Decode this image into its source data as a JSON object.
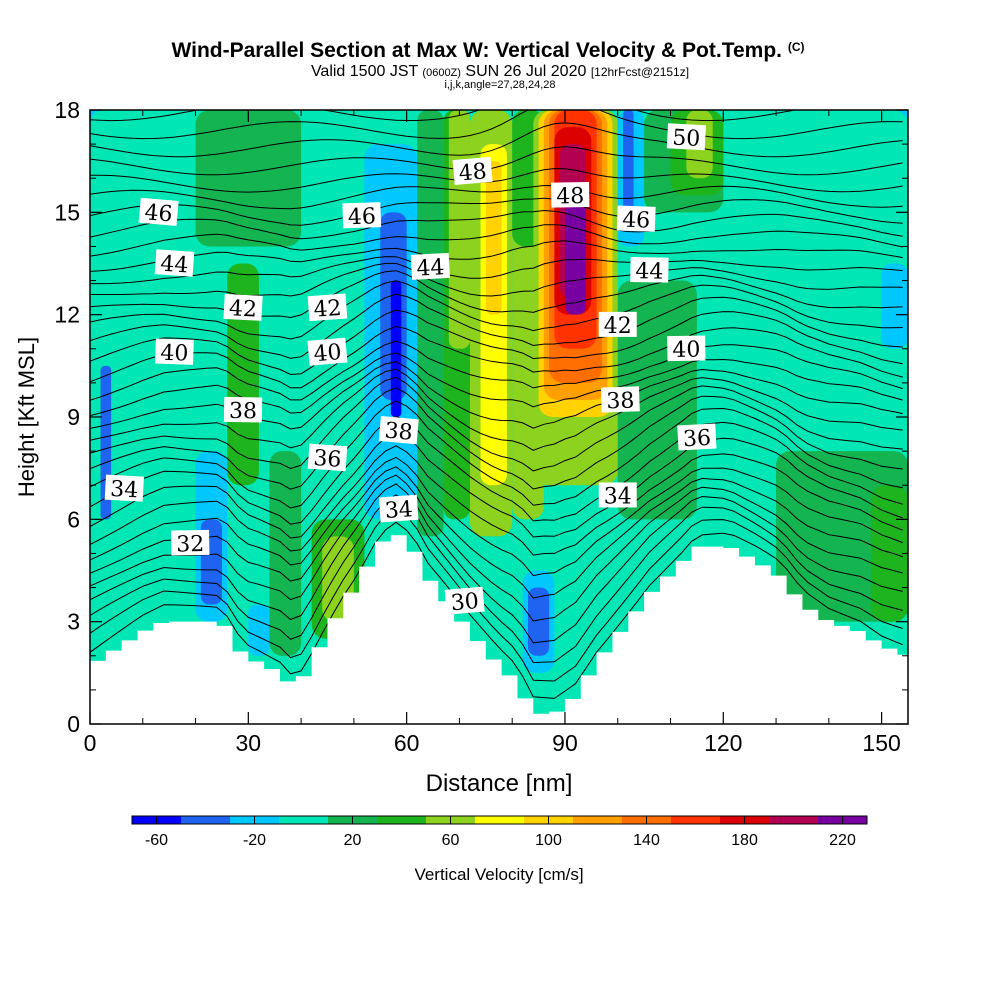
{
  "chart_data": {
    "type": "heatmap",
    "title": "Wind-Parallel Section at Max W: Vertical Velocity & Pot.Temp.",
    "title_mark": "(C)",
    "subtitle_valid": "Valid 1500 JST",
    "subtitle_utc": "(0600Z)",
    "subtitle_date": "SUN 26 Jul 2020",
    "subtitle_fcst": "[12hrFcst@2151z]",
    "subtitle2": "i,j,k,angle=27,28,24,28",
    "xlabel": "Distance [nm]",
    "ylabel": "Height [Kft MSL]",
    "xlim": [
      0,
      155
    ],
    "ylim": [
      0,
      18
    ],
    "xticks": [
      0,
      30,
      60,
      90,
      120,
      150
    ],
    "yticks": [
      0,
      3,
      6,
      9,
      12,
      15,
      18
    ],
    "colorbar": {
      "label": "Vertical Velocity [cm/s]",
      "min": -70,
      "step": 20,
      "tick_values": [
        -60,
        -20,
        20,
        60,
        100,
        140,
        180,
        220
      ],
      "tick_labels": [
        "-60",
        "-20",
        "20",
        "60",
        "100",
        "140",
        "180",
        "220"
      ],
      "colors": [
        "#0000ff",
        "#1e64f0",
        "#00c8ff",
        "#00e6b4",
        "#14b450",
        "#1eb41e",
        "#8cd21e",
        "#ffff00",
        "#ffd200",
        "#ffa000",
        "#ff6e00",
        "#ff3200",
        "#dc0000",
        "#b40050",
        "#7800a0"
      ]
    },
    "terrain": [
      {
        "x": 0,
        "h": 1.7
      },
      {
        "x": 3,
        "h": 2.0
      },
      {
        "x": 6,
        "h": 2.3
      },
      {
        "x": 10,
        "h": 2.7
      },
      {
        "x": 14,
        "h": 3.0
      },
      {
        "x": 25,
        "h": 3.0
      },
      {
        "x": 29,
        "h": 2.0
      },
      {
        "x": 32,
        "h": 1.8
      },
      {
        "x": 36,
        "h": 1.5
      },
      {
        "x": 39,
        "h": 1.0
      },
      {
        "x": 42,
        "h": 1.8
      },
      {
        "x": 45,
        "h": 2.7
      },
      {
        "x": 48,
        "h": 3.5
      },
      {
        "x": 51,
        "h": 4.2
      },
      {
        "x": 55,
        "h": 5.3
      },
      {
        "x": 58,
        "h": 5.6
      },
      {
        "x": 61,
        "h": 5.2
      },
      {
        "x": 64,
        "h": 4.3
      },
      {
        "x": 68,
        "h": 3.5
      },
      {
        "x": 72,
        "h": 2.7
      },
      {
        "x": 77,
        "h": 1.8
      },
      {
        "x": 81,
        "h": 1.2
      },
      {
        "x": 84,
        "h": 0.3
      },
      {
        "x": 88,
        "h": 0.3
      },
      {
        "x": 92,
        "h": 0.8
      },
      {
        "x": 96,
        "h": 1.8
      },
      {
        "x": 101,
        "h": 2.8
      },
      {
        "x": 106,
        "h": 3.8
      },
      {
        "x": 112,
        "h": 4.7
      },
      {
        "x": 115,
        "h": 5.2
      },
      {
        "x": 121,
        "h": 5.2
      },
      {
        "x": 127,
        "h": 4.7
      },
      {
        "x": 131,
        "h": 4.3
      },
      {
        "x": 135,
        "h": 3.5
      },
      {
        "x": 140,
        "h": 3.0
      },
      {
        "x": 146,
        "h": 2.7
      },
      {
        "x": 150,
        "h": 2.3
      },
      {
        "x": 155,
        "h": 2.0
      }
    ],
    "vertical_velocity_cells": [
      {
        "x0": 0,
        "x1": 155,
        "y0": 0,
        "y1": 18,
        "w": 5
      },
      {
        "x0": 0,
        "x1": 20,
        "y0": 11,
        "y1": 18,
        "w": 5
      },
      {
        "x0": 20,
        "x1": 40,
        "y0": 14,
        "y1": 18,
        "w": 25
      },
      {
        "x0": 26,
        "x1": 32,
        "y0": 7,
        "y1": 13.5,
        "w": 30
      },
      {
        "x0": 27,
        "x1": 31,
        "y0": 9,
        "y1": 12,
        "w": 45
      },
      {
        "x0": 20,
        "x1": 26,
        "y0": 3,
        "y1": 8,
        "w": -25
      },
      {
        "x0": 21,
        "x1": 25,
        "y0": 3.5,
        "y1": 6,
        "w": -45
      },
      {
        "x0": 2,
        "x1": 4,
        "y0": 6,
        "y1": 10.5,
        "w": -45
      },
      {
        "x0": 30,
        "x1": 34,
        "y0": 2,
        "y1": 3.5,
        "w": -25
      },
      {
        "x0": 34,
        "x1": 40,
        "y0": 2,
        "y1": 8,
        "w": 22
      },
      {
        "x0": 42,
        "x1": 52,
        "y0": 2.5,
        "y1": 6,
        "w": 35
      },
      {
        "x0": 44,
        "x1": 50,
        "y0": 3,
        "y1": 5.5,
        "w": 55
      },
      {
        "x0": 52,
        "x1": 62,
        "y0": 6,
        "y1": 17,
        "w": -25
      },
      {
        "x0": 55,
        "x1": 60,
        "y0": 9.5,
        "y1": 15,
        "w": -45
      },
      {
        "x0": 57,
        "x1": 59,
        "y0": 9,
        "y1": 13,
        "w": -65
      },
      {
        "x0": 62,
        "x1": 67,
        "y0": 5.5,
        "y1": 18,
        "w": 25
      },
      {
        "x0": 67,
        "x1": 72,
        "y0": 6,
        "y1": 18,
        "w": 45
      },
      {
        "x0": 68,
        "x1": 72,
        "y0": 11,
        "y1": 18,
        "w": 65
      },
      {
        "x0": 72,
        "x1": 80,
        "y0": 5.5,
        "y1": 18,
        "w": 65
      },
      {
        "x0": 74,
        "x1": 79,
        "y0": 7,
        "y1": 17,
        "w": 85
      },
      {
        "x0": 75,
        "x1": 78,
        "y0": 12,
        "y1": 16.5,
        "w": 105
      },
      {
        "x0": 80,
        "x1": 86,
        "y0": 6,
        "y1": 18,
        "w": 65
      },
      {
        "x0": 80,
        "x1": 86,
        "y0": 14,
        "y1": 18,
        "w": 45
      },
      {
        "x0": 84,
        "x1": 100,
        "y0": 7,
        "y1": 18,
        "w": 65
      },
      {
        "x0": 85,
        "x1": 99,
        "y0": 9,
        "y1": 18,
        "w": 90
      },
      {
        "x0": 86,
        "x1": 98,
        "y0": 9.5,
        "y1": 18,
        "w": 110
      },
      {
        "x0": 87,
        "x1": 97,
        "y0": 10,
        "y1": 18,
        "w": 130
      },
      {
        "x0": 88,
        "x1": 96,
        "y0": 11,
        "y1": 18,
        "w": 150
      },
      {
        "x0": 88,
        "x1": 95,
        "y0": 12,
        "y1": 17.5,
        "w": 170
      },
      {
        "x0": 89,
        "x1": 94,
        "y0": 12.5,
        "y1": 17,
        "w": 190
      },
      {
        "x0": 90,
        "x1": 94,
        "y0": 12,
        "y1": 15.5,
        "w": 210
      },
      {
        "x0": 91,
        "x1": 93,
        "y0": 12.5,
        "y1": 15,
        "w": 225
      },
      {
        "x0": 82,
        "x1": 88,
        "y0": 1.5,
        "y1": 4.5,
        "w": -25
      },
      {
        "x0": 83,
        "x1": 87,
        "y0": 2,
        "y1": 4,
        "w": -45
      },
      {
        "x0": 100,
        "x1": 105,
        "y0": 14,
        "y1": 18,
        "w": -25
      },
      {
        "x0": 101,
        "x1": 103,
        "y0": 15,
        "y1": 18,
        "w": -45
      },
      {
        "x0": 100,
        "x1": 115,
        "y0": 6,
        "y1": 13,
        "w": 22
      },
      {
        "x0": 105,
        "x1": 120,
        "y0": 15,
        "y1": 18,
        "w": 22
      },
      {
        "x0": 110,
        "x1": 120,
        "y0": 15.5,
        "y1": 18,
        "w": 35
      },
      {
        "x0": 113,
        "x1": 118,
        "y0": 16,
        "y1": 18,
        "w": 55
      },
      {
        "x0": 130,
        "x1": 155,
        "y0": 3,
        "y1": 8,
        "w": 22
      },
      {
        "x0": 148,
        "x1": 155,
        "y0": 3,
        "y1": 7,
        "w": 35
      },
      {
        "x0": 150,
        "x1": 155,
        "y0": 11,
        "y1": 13.5,
        "w": -25
      }
    ],
    "isentrope_labels": [
      {
        "text": "30",
        "x": 71,
        "y": 3.6
      },
      {
        "text": "32",
        "x": 19,
        "y": 5.3
      },
      {
        "text": "34",
        "x": 6.5,
        "y": 6.9
      },
      {
        "text": "34",
        "x": 58.5,
        "y": 6.3
      },
      {
        "text": "34",
        "x": 100,
        "y": 6.7
      },
      {
        "text": "36",
        "x": 45,
        "y": 7.8
      },
      {
        "text": "36",
        "x": 115,
        "y": 8.4
      },
      {
        "text": "38",
        "x": 29,
        "y": 9.2
      },
      {
        "text": "38",
        "x": 58.5,
        "y": 8.6
      },
      {
        "text": "38",
        "x": 100.5,
        "y": 9.5
      },
      {
        "text": "40",
        "x": 16,
        "y": 10.9
      },
      {
        "text": "40",
        "x": 45,
        "y": 10.9
      },
      {
        "text": "40",
        "x": 113,
        "y": 11.0
      },
      {
        "text": "42",
        "x": 29,
        "y": 12.2
      },
      {
        "text": "42",
        "x": 45,
        "y": 12.2
      },
      {
        "text": "42",
        "x": 100,
        "y": 11.7
      },
      {
        "text": "44",
        "x": 16,
        "y": 13.5
      },
      {
        "text": "44",
        "x": 64.5,
        "y": 13.4
      },
      {
        "text": "44",
        "x": 106,
        "y": 13.3
      },
      {
        "text": "46",
        "x": 13,
        "y": 15.0
      },
      {
        "text": "46",
        "x": 51.5,
        "y": 14.9
      },
      {
        "text": "46",
        "x": 103.5,
        "y": 14.8
      },
      {
        "text": "48",
        "x": 72.5,
        "y": 16.2
      },
      {
        "text": "48",
        "x": 91,
        "y": 15.5
      },
      {
        "text": "50",
        "x": 113,
        "y": 17.2
      }
    ]
  }
}
